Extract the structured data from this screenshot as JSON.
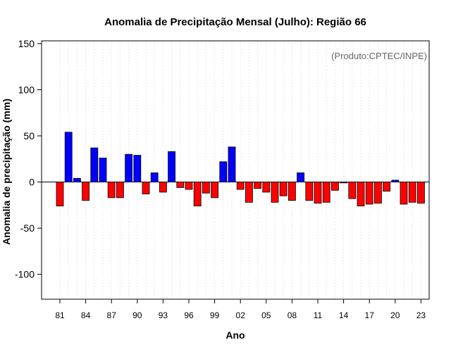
{
  "chart_data": {
    "type": "bar",
    "title": "Anomalia de Precipitação Mensal (Julho): Região 66",
    "credit": "(Produto:CPTEC/INPE)",
    "xlabel": "Ano",
    "ylabel": "Anomalia de precipitação (mm)",
    "ylim": [
      -127,
      153
    ],
    "yticks": [
      -100,
      -50,
      0,
      50,
      100,
      150
    ],
    "x_tick_labels": [
      "81",
      "84",
      "87",
      "90",
      "93",
      "96",
      "99",
      "02",
      "05",
      "08",
      "11",
      "14",
      "17",
      "20",
      "23"
    ],
    "grid": "vertical dotted",
    "categories": [
      "1981",
      "1982",
      "1983",
      "1984",
      "1985",
      "1986",
      "1987",
      "1988",
      "1989",
      "1990",
      "1991",
      "1992",
      "1993",
      "1994",
      "1995",
      "1996",
      "1997",
      "1998",
      "1999",
      "2000",
      "2001",
      "2002",
      "2003",
      "2004",
      "2005",
      "2006",
      "2007",
      "2008",
      "2009",
      "2010",
      "2011",
      "2012",
      "2013",
      "2014",
      "2015",
      "2016",
      "2017",
      "2018",
      "2019",
      "2020",
      "2021",
      "2022",
      "2023"
    ],
    "values": [
      -26,
      54,
      4,
      -20,
      37,
      26,
      -17,
      -17,
      30,
      29,
      -13,
      10,
      -11,
      33,
      -6,
      -8,
      -26,
      -12,
      -17,
      22,
      38,
      -8,
      -22,
      -7,
      -11,
      -22,
      -15,
      -20,
      10,
      -20,
      -23,
      -22,
      -9,
      -1,
      -18,
      -26,
      -24,
      -23,
      -10,
      2,
      -24,
      -22,
      -23
    ],
    "colors": {
      "positive": "#0000ff",
      "negative": "#ff0000",
      "outline": "#000000",
      "grid": "#d3d3d3"
    }
  }
}
